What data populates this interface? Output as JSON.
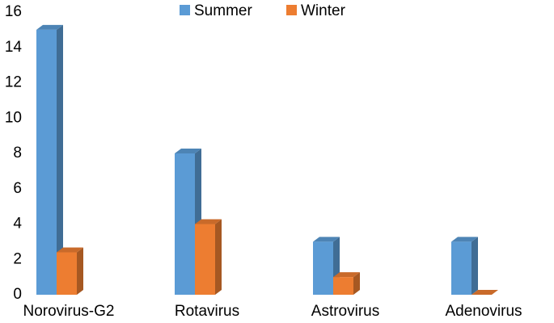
{
  "chart_data": {
    "type": "bar3d",
    "categories": [
      "Norovirus-G2",
      "Rotavirus",
      "Astrovirus",
      "Adenovirus"
    ],
    "series": [
      {
        "name": "Summer",
        "color": "#5b9bd5",
        "values": [
          15,
          8,
          3,
          3
        ]
      },
      {
        "name": "Winter",
        "color": "#ed7d31",
        "values": [
          2.4,
          4,
          1,
          0
        ]
      }
    ],
    "ylim": [
      0,
      16
    ],
    "yticks": [
      0,
      2,
      4,
      6,
      8,
      10,
      12,
      14,
      16
    ],
    "grid": false,
    "legend": "top"
  }
}
